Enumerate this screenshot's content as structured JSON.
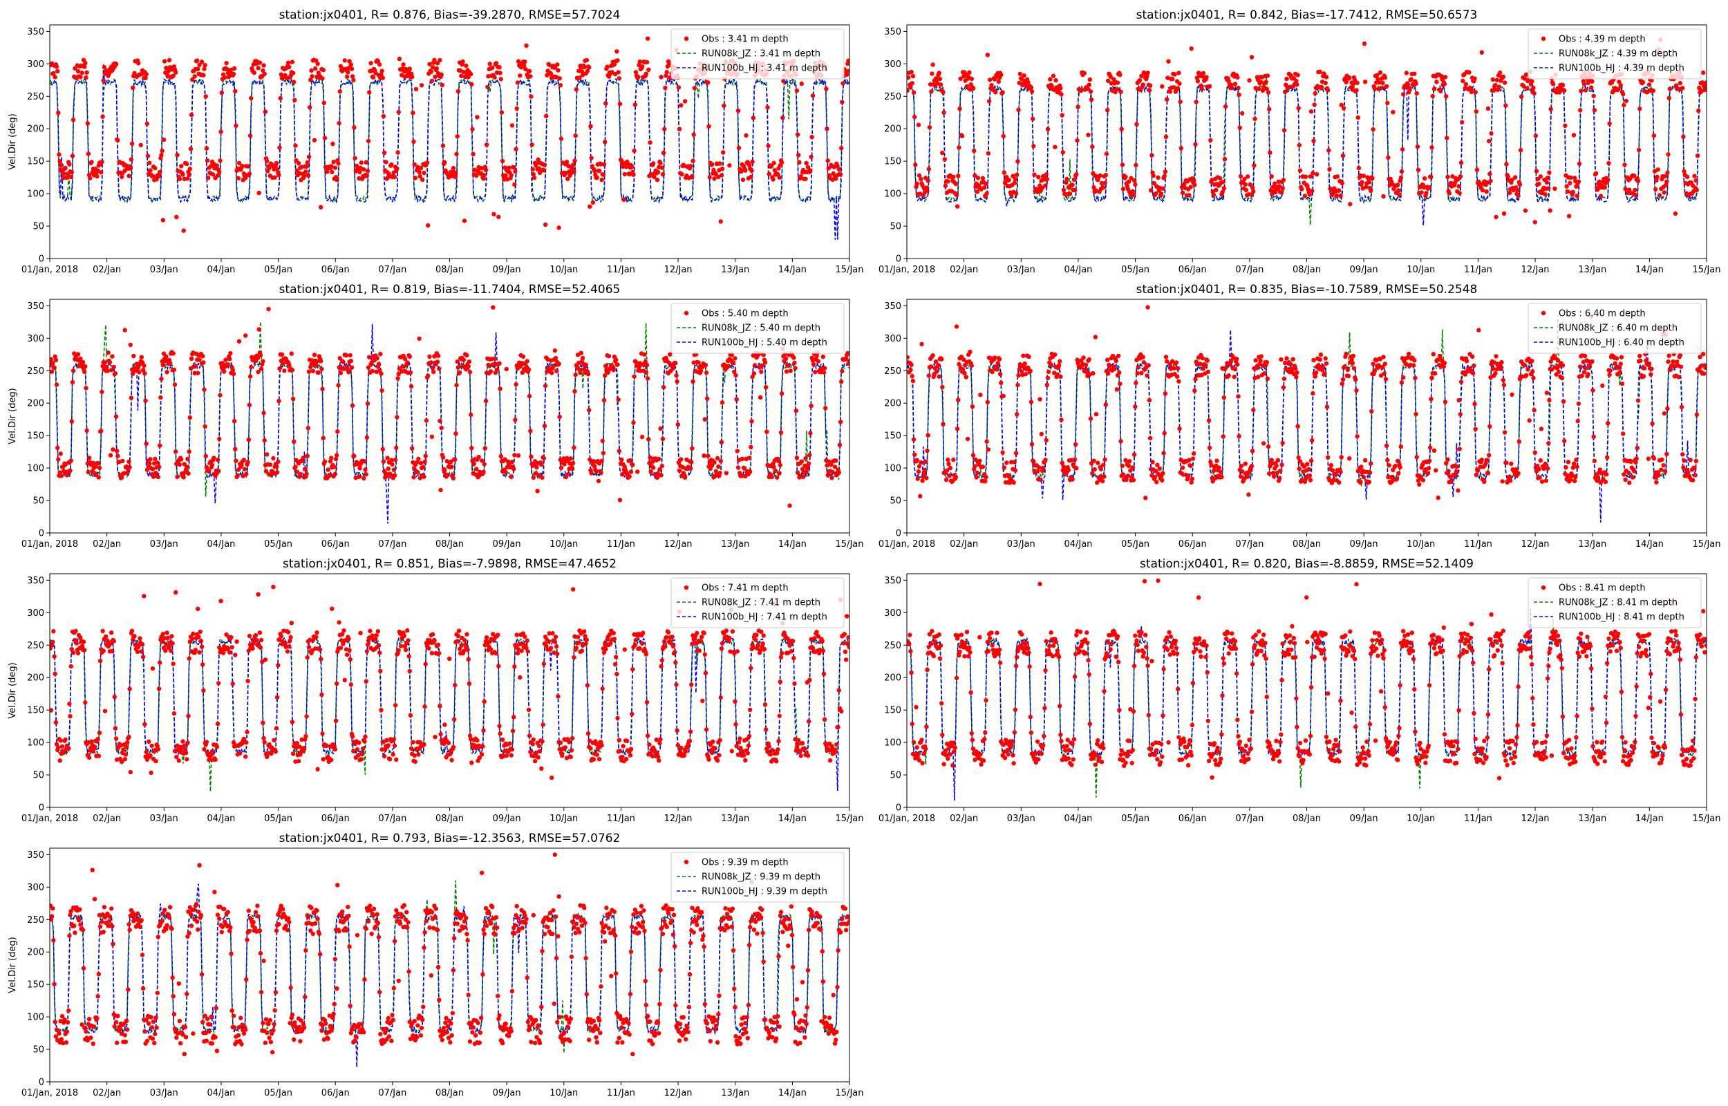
{
  "chart_data": [
    {
      "type": "line",
      "title": "station:jx0401, R= 0.876, Bias=-39.2870, RMSE=57.7024",
      "ylabel": "Vel.Dir (deg)",
      "xlabel": "",
      "ylim": [
        0,
        360
      ],
      "xlim": [
        0,
        14
      ],
      "yticks": [
        0,
        50,
        100,
        150,
        200,
        250,
        300,
        350
      ],
      "xtick_labels": [
        "01/Jan, 2018",
        "02/Jan",
        "03/Jan",
        "04/Jan",
        "05/Jan",
        "06/Jan",
        "07/Jan",
        "08/Jan",
        "09/Jan",
        "10/Jan",
        "11/Jan",
        "12/Jan",
        "13/Jan",
        "14/Jan",
        "15/Jan"
      ],
      "legend_position": "top-right",
      "profile": {
        "ebb": 272,
        "flood": 92,
        "obs_ebb": 292,
        "obs_flood": 135,
        "noise": 14
      },
      "series": [
        {
          "name": "Obs : 3.41 m depth",
          "style": "dots",
          "color": "#ff0000"
        },
        {
          "name": "RUN08k_JZ : 3.41 m depth",
          "style": "dashed",
          "color": "#008000"
        },
        {
          "name": "RUN100b_HJ : 3.41 m depth",
          "style": "dashed",
          "color": "#0000ff"
        }
      ]
    },
    {
      "type": "line",
      "title": "station:jx0401, R= 0.842, Bias=-17.7412, RMSE=50.6573",
      "ylabel": "",
      "xlabel": "",
      "ylim": [
        0,
        360
      ],
      "xlim": [
        0,
        14
      ],
      "yticks": [
        0,
        50,
        100,
        150,
        200,
        250,
        300,
        350
      ],
      "xtick_labels": [
        "01/Jan, 2018",
        "02/Jan",
        "03/Jan",
        "04/Jan",
        "05/Jan",
        "06/Jan",
        "07/Jan",
        "08/Jan",
        "09/Jan",
        "10/Jan",
        "11/Jan",
        "12/Jan",
        "13/Jan",
        "14/Jan",
        "15/Jan"
      ],
      "legend_position": "top-right",
      "profile": {
        "ebb": 262,
        "flood": 92,
        "obs_ebb": 272,
        "obs_flood": 112,
        "noise": 16
      },
      "series": [
        {
          "name": "Obs : 4.39 m depth",
          "style": "dots",
          "color": "#ff0000"
        },
        {
          "name": "RUN08k_JZ : 4.39 m depth",
          "style": "dashed",
          "color": "#008000"
        },
        {
          "name": "RUN100b_HJ : 4.39 m depth",
          "style": "dashed",
          "color": "#0000ff"
        }
      ]
    },
    {
      "type": "line",
      "title": "station:jx0401, R= 0.819, Bias=-11.7404, RMSE=52.4065",
      "ylabel": "Vel.Dir (deg)",
      "xlabel": "",
      "ylim": [
        0,
        360
      ],
      "xlim": [
        0,
        14
      ],
      "yticks": [
        0,
        50,
        100,
        150,
        200,
        250,
        300,
        350
      ],
      "xtick_labels": [
        "01/Jan, 2018",
        "02/Jan",
        "03/Jan",
        "04/Jan",
        "05/Jan",
        "06/Jan",
        "07/Jan",
        "08/Jan",
        "09/Jan",
        "10/Jan",
        "11/Jan",
        "12/Jan",
        "13/Jan",
        "14/Jan",
        "15/Jan"
      ],
      "legend_position": "top-right",
      "profile": {
        "ebb": 258,
        "flood": 90,
        "obs_ebb": 262,
        "obs_flood": 100,
        "noise": 16
      },
      "series": [
        {
          "name": "Obs : 5.40 m depth",
          "style": "dots",
          "color": "#ff0000"
        },
        {
          "name": "RUN08k_JZ : 5.40 m depth",
          "style": "dashed",
          "color": "#008000"
        },
        {
          "name": "RUN100b_HJ : 5.40 m depth",
          "style": "dashed",
          "color": "#0000ff"
        }
      ]
    },
    {
      "type": "line",
      "title": "station:jx0401, R= 0.835, Bias=-10.7589, RMSE=50.2548",
      "ylabel": "",
      "xlabel": "",
      "ylim": [
        0,
        360
      ],
      "xlim": [
        0,
        14
      ],
      "yticks": [
        0,
        50,
        100,
        150,
        200,
        250,
        300,
        350
      ],
      "xtick_labels": [
        "01/Jan, 2018",
        "02/Jan",
        "03/Jan",
        "04/Jan",
        "05/Jan",
        "06/Jan",
        "07/Jan",
        "08/Jan",
        "09/Jan",
        "10/Jan",
        "11/Jan",
        "12/Jan",
        "13/Jan",
        "14/Jan",
        "15/Jan"
      ],
      "legend_position": "top-right",
      "profile": {
        "ebb": 256,
        "flood": 88,
        "obs_ebb": 258,
        "obs_flood": 95,
        "noise": 18
      },
      "series": [
        {
          "name": "Obs : 6.40 m depth",
          "style": "dots",
          "color": "#ff0000"
        },
        {
          "name": "RUN08k_JZ : 6.40 m depth",
          "style": "dashed",
          "color": "#008000"
        },
        {
          "name": "RUN100b_HJ : 6.40 m depth",
          "style": "dashed",
          "color": "#0000ff"
        }
      ]
    },
    {
      "type": "line",
      "title": "station:jx0401, R= 0.851, Bias=-7.9898, RMSE=47.4652",
      "ylabel": "Vel.Dir (deg)",
      "xlabel": "",
      "ylim": [
        0,
        360
      ],
      "xlim": [
        0,
        14
      ],
      "yticks": [
        0,
        50,
        100,
        150,
        200,
        250,
        300,
        350
      ],
      "xtick_labels": [
        "01/Jan, 2018",
        "02/Jan",
        "03/Jan",
        "04/Jan",
        "05/Jan",
        "06/Jan",
        "07/Jan",
        "08/Jan",
        "09/Jan",
        "10/Jan",
        "11/Jan",
        "12/Jan",
        "13/Jan",
        "14/Jan",
        "15/Jan"
      ],
      "legend_position": "top-right",
      "profile": {
        "ebb": 256,
        "flood": 86,
        "obs_ebb": 255,
        "obs_flood": 88,
        "noise": 18
      },
      "series": [
        {
          "name": "Obs : 7.41 m depth",
          "style": "dots",
          "color": "#ff0000"
        },
        {
          "name": "RUN08k_JZ : 7.41 m depth",
          "style": "dashed",
          "color": "#008000"
        },
        {
          "name": "RUN100b_HJ : 7.41 m depth",
          "style": "dashed",
          "color": "#0000ff"
        }
      ]
    },
    {
      "type": "line",
      "title": "station:jx0401, R= 0.820, Bias=-8.8859, RMSE=52.1409",
      "ylabel": "",
      "xlabel": "",
      "ylim": [
        0,
        360
      ],
      "xlim": [
        0,
        14
      ],
      "yticks": [
        0,
        50,
        100,
        150,
        200,
        250,
        300,
        350
      ],
      "xtick_labels": [
        "01/Jan, 2018",
        "02/Jan",
        "03/Jan",
        "04/Jan",
        "05/Jan",
        "06/Jan",
        "07/Jan",
        "08/Jan",
        "09/Jan",
        "10/Jan",
        "11/Jan",
        "12/Jan",
        "13/Jan",
        "14/Jan",
        "15/Jan"
      ],
      "legend_position": "top-right",
      "profile": {
        "ebb": 255,
        "flood": 84,
        "obs_ebb": 252,
        "obs_flood": 84,
        "noise": 20
      },
      "series": [
        {
          "name": "Obs : 8.41 m depth",
          "style": "dots",
          "color": "#ff0000"
        },
        {
          "name": "RUN08k_JZ : 8.41 m depth",
          "style": "dashed",
          "color": "#008000"
        },
        {
          "name": "RUN100b_HJ : 8.41 m depth",
          "style": "dashed",
          "color": "#0000ff"
        }
      ]
    },
    {
      "type": "line",
      "title": "station:jx0401, R= 0.793, Bias=-12.3563, RMSE=57.0762",
      "ylabel": "Vel.Dir (deg)",
      "xlabel": "",
      "ylim": [
        0,
        360
      ],
      "xlim": [
        0,
        14
      ],
      "yticks": [
        0,
        50,
        100,
        150,
        200,
        250,
        300,
        350
      ],
      "xtick_labels": [
        "01/Jan, 2018",
        "02/Jan",
        "03/Jan",
        "04/Jan",
        "05/Jan",
        "06/Jan",
        "07/Jan",
        "08/Jan",
        "09/Jan",
        "10/Jan",
        "11/Jan",
        "12/Jan",
        "13/Jan",
        "14/Jan",
        "15/Jan"
      ],
      "legend_position": "top-right",
      "profile": {
        "ebb": 254,
        "flood": 80,
        "obs_ebb": 250,
        "obs_flood": 80,
        "noise": 22
      },
      "series": [
        {
          "name": "Obs : 9.39 m depth",
          "style": "dots",
          "color": "#ff0000"
        },
        {
          "name": "RUN08k_JZ : 9.39 m depth",
          "style": "dashed",
          "color": "#008000"
        },
        {
          "name": "RUN100b_HJ : 9.39 m depth",
          "style": "dashed",
          "color": "#0000ff"
        }
      ]
    }
  ]
}
